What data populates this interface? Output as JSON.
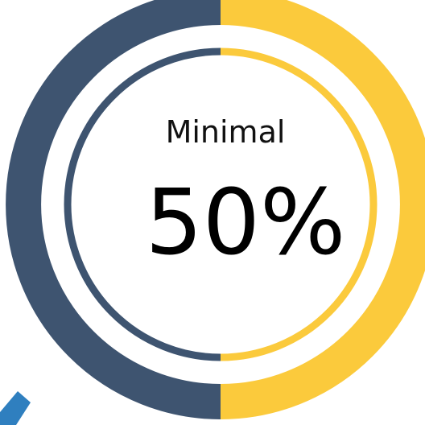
{
  "chart_data": {
    "type": "pie",
    "style": "donut-gauge",
    "label": "Minimal",
    "value_text": "50%",
    "slices": [
      {
        "value": 50,
        "color": "#3e5470"
      },
      {
        "value": 50,
        "color": "#fbca3c"
      }
    ]
  },
  "colors": {
    "navy": "#3e5470",
    "yellow": "#fbca3c",
    "accent_blue": "#2f7fbf"
  }
}
